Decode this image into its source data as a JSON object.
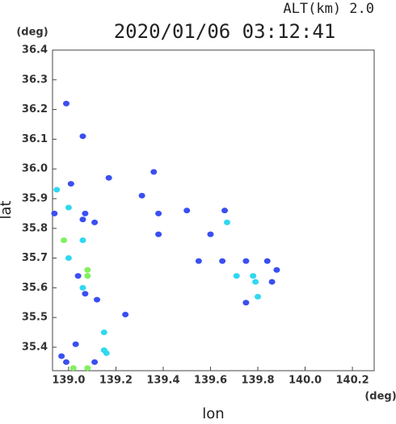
{
  "chart_data": {
    "type": "scatter",
    "title": "2020/01/06 03:12:41",
    "subtitle": "ALT(km)  2.0",
    "xlabel": "lon",
    "ylabel": "lat",
    "xunit": "(deg)",
    "yunit": "(deg)",
    "xlim": [
      138.932,
      140.292
    ],
    "ylim": [
      35.321,
      36.4
    ],
    "xticks": [
      {
        "value": 139,
        "label": "139.0"
      },
      139.2,
      139.4,
      139.6,
      139.8,
      {
        "value": 140,
        "label": "140.0"
      },
      140.2
    ],
    "yticks": [
      {
        "value": 35.4,
        "label": "35.4"
      },
      35.5,
      35.6,
      35.7,
      35.8,
      35.9,
      {
        "value": 36,
        "label": "36.0"
      },
      36.1,
      36.2,
      36.3,
      36.4
    ],
    "series": [
      {
        "color": "#3a4ff0",
        "x": [
          138.99,
          139.06,
          139.01,
          139.17,
          139.36,
          139.31,
          139.07,
          139.06,
          139.11,
          138.94,
          139.04,
          139.07,
          139.12,
          139.24,
          139.03,
          138.97,
          139.11,
          138.99,
          139.38,
          139.38,
          139.5,
          139.6,
          139.66,
          139.55,
          139.65,
          139.75,
          139.75,
          139.84,
          139.88,
          139.86
        ],
        "y": [
          36.22,
          36.11,
          35.95,
          35.97,
          35.99,
          35.91,
          35.85,
          35.83,
          35.82,
          35.85,
          35.64,
          35.58,
          35.56,
          35.51,
          35.41,
          35.37,
          35.35,
          35.35,
          35.85,
          35.78,
          35.86,
          35.78,
          35.86,
          35.69,
          35.69,
          35.69,
          35.55,
          35.69,
          35.66,
          35.62
        ]
      },
      {
        "color": "#30d8f0",
        "x": [
          138.95,
          139.0,
          139.06,
          139.0,
          139.06,
          139.15,
          139.15,
          139.16,
          139.67,
          139.78,
          139.79,
          139.8,
          139.71
        ],
        "y": [
          35.93,
          35.87,
          35.76,
          35.7,
          35.6,
          35.45,
          35.39,
          35.38,
          35.82,
          35.64,
          35.62,
          35.57,
          35.64
        ]
      },
      {
        "color": "#80f060",
        "x": [
          138.98,
          139.08,
          139.08,
          139.02,
          139.08
        ],
        "y": [
          35.76,
          35.66,
          35.64,
          35.33,
          35.33
        ]
      }
    ]
  }
}
